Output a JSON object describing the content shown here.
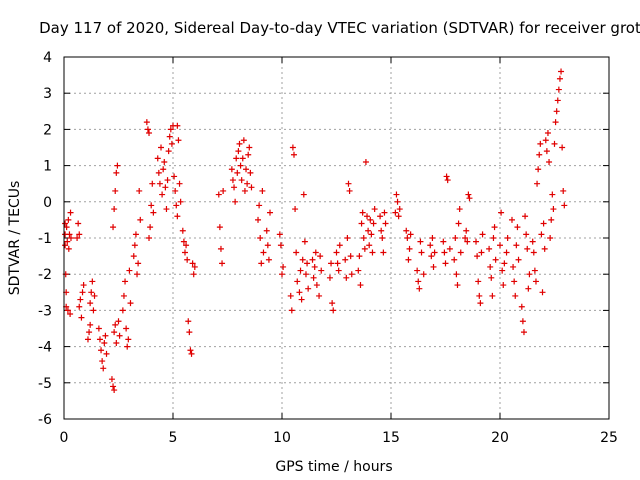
{
  "chart_data": {
    "type": "scatter",
    "title": "Day 117 of 2020, Sidereal Day-to-day VTEC variation (SDTVAR) for receiver grot",
    "xlabel": "GPS time / hours",
    "ylabel": "SDTVAR / TECUs",
    "xlim": [
      0,
      25
    ],
    "ylim": [
      -6,
      4
    ],
    "xticks": [
      0,
      5,
      10,
      15,
      20,
      25
    ],
    "yticks": [
      -6,
      -5,
      -4,
      -3,
      -2,
      -1,
      0,
      1,
      2,
      3,
      4
    ],
    "grid": true,
    "marker": "+",
    "color": "#e00000",
    "series": [
      {
        "name": "SDTVAR",
        "points": [
          [
            0.05,
            -0.6
          ],
          [
            0.05,
            -0.9
          ],
          [
            0.05,
            -1.2
          ],
          [
            0.08,
            -2.0
          ],
          [
            0.1,
            -2.5
          ],
          [
            0.1,
            -2.9
          ],
          [
            0.12,
            -0.7
          ],
          [
            0.15,
            -1.1
          ],
          [
            0.18,
            -3.0
          ],
          [
            0.2,
            -0.5
          ],
          [
            0.22,
            -1.3
          ],
          [
            0.25,
            -0.9
          ],
          [
            0.28,
            -3.1
          ],
          [
            0.3,
            -0.3
          ],
          [
            0.32,
            -1.0
          ],
          [
            0.6,
            -1.0
          ],
          [
            0.65,
            -0.6
          ],
          [
            0.7,
            -0.9
          ],
          [
            0.7,
            -2.9
          ],
          [
            0.75,
            -2.7
          ],
          [
            0.8,
            -3.2
          ],
          [
            0.85,
            -2.5
          ],
          [
            0.9,
            -2.3
          ],
          [
            1.1,
            -3.8
          ],
          [
            1.15,
            -3.6
          ],
          [
            1.2,
            -3.4
          ],
          [
            1.2,
            -2.8
          ],
          [
            1.25,
            -2.5
          ],
          [
            1.3,
            -2.2
          ],
          [
            1.35,
            -3.0
          ],
          [
            1.4,
            -2.6
          ],
          [
            1.6,
            -3.5
          ],
          [
            1.65,
            -3.8
          ],
          [
            1.7,
            -4.1
          ],
          [
            1.75,
            -4.4
          ],
          [
            1.8,
            -4.6
          ],
          [
            1.85,
            -3.9
          ],
          [
            1.9,
            -3.7
          ],
          [
            1.95,
            -4.2
          ],
          [
            2.2,
            -4.9
          ],
          [
            2.25,
            -5.1
          ],
          [
            2.3,
            -5.2
          ],
          [
            2.3,
            -3.6
          ],
          [
            2.35,
            -3.4
          ],
          [
            2.4,
            -3.9
          ],
          [
            2.25,
            -0.7
          ],
          [
            2.3,
            -0.2
          ],
          [
            2.35,
            0.3
          ],
          [
            2.4,
            0.8
          ],
          [
            2.45,
            1.0
          ],
          [
            2.5,
            -3.3
          ],
          [
            2.55,
            -3.7
          ],
          [
            2.7,
            -3.0
          ],
          [
            2.75,
            -2.6
          ],
          [
            2.8,
            -2.2
          ],
          [
            2.85,
            -3.5
          ],
          [
            2.9,
            -4.0
          ],
          [
            2.95,
            -3.8
          ],
          [
            3.0,
            -1.9
          ],
          [
            3.05,
            -2.8
          ],
          [
            3.2,
            -1.5
          ],
          [
            3.25,
            -1.2
          ],
          [
            3.3,
            -0.9
          ],
          [
            3.35,
            -2.0
          ],
          [
            3.4,
            -1.7
          ],
          [
            3.45,
            0.3
          ],
          [
            3.5,
            -0.5
          ],
          [
            3.8,
            2.2
          ],
          [
            3.85,
            2.0
          ],
          [
            3.9,
            1.9
          ],
          [
            3.9,
            -1.0
          ],
          [
            3.95,
            -0.7
          ],
          [
            4.0,
            -0.1
          ],
          [
            4.05,
            0.5
          ],
          [
            4.1,
            -0.3
          ],
          [
            4.3,
            1.2
          ],
          [
            4.35,
            0.8
          ],
          [
            4.4,
            0.5
          ],
          [
            4.45,
            1.5
          ],
          [
            4.5,
            0.2
          ],
          [
            4.55,
            0.9
          ],
          [
            4.6,
            1.1
          ],
          [
            4.65,
            0.4
          ],
          [
            4.7,
            -0.2
          ],
          [
            4.75,
            0.6
          ],
          [
            4.8,
            1.4
          ],
          [
            4.85,
            1.8
          ],
          [
            4.9,
            2.0
          ],
          [
            4.95,
            1.6
          ],
          [
            5.0,
            2.1
          ],
          [
            5.05,
            0.7
          ],
          [
            5.1,
            0.3
          ],
          [
            5.15,
            -0.1
          ],
          [
            5.2,
            -0.4
          ],
          [
            5.2,
            2.1
          ],
          [
            5.25,
            1.7
          ],
          [
            5.3,
            0.5
          ],
          [
            5.35,
            0.0
          ],
          [
            5.45,
            -0.8
          ],
          [
            5.5,
            -1.1
          ],
          [
            5.55,
            -1.4
          ],
          [
            5.6,
            -1.2
          ],
          [
            5.65,
            -1.6
          ],
          [
            5.7,
            -3.3
          ],
          [
            5.75,
            -3.6
          ],
          [
            5.8,
            -4.1
          ],
          [
            5.85,
            -4.2
          ],
          [
            5.9,
            -1.7
          ],
          [
            5.95,
            -2.0
          ],
          [
            6.0,
            -1.8
          ],
          [
            7.1,
            0.2
          ],
          [
            7.15,
            -0.7
          ],
          [
            7.2,
            -1.3
          ],
          [
            7.25,
            -1.7
          ],
          [
            7.3,
            0.3
          ],
          [
            7.7,
            0.9
          ],
          [
            7.75,
            0.6
          ],
          [
            7.8,
            0.4
          ],
          [
            7.85,
            0.0
          ],
          [
            7.9,
            1.2
          ],
          [
            7.95,
            0.8
          ],
          [
            8.0,
            1.4
          ],
          [
            8.05,
            1.6
          ],
          [
            8.1,
            1.0
          ],
          [
            8.15,
            0.6
          ],
          [
            8.2,
            1.2
          ],
          [
            8.25,
            1.7
          ],
          [
            8.3,
            0.3
          ],
          [
            8.35,
            0.9
          ],
          [
            8.4,
            0.5
          ],
          [
            8.45,
            1.3
          ],
          [
            8.5,
            1.5
          ],
          [
            8.55,
            0.8
          ],
          [
            8.6,
            0.4
          ],
          [
            8.9,
            -0.5
          ],
          [
            8.95,
            -0.1
          ],
          [
            9.0,
            -1.0
          ],
          [
            9.05,
            -1.7
          ],
          [
            9.1,
            0.3
          ],
          [
            9.15,
            -1.4
          ],
          [
            9.3,
            -0.8
          ],
          [
            9.35,
            -1.2
          ],
          [
            9.4,
            -1.6
          ],
          [
            9.45,
            -0.3
          ],
          [
            9.9,
            -0.9
          ],
          [
            9.95,
            -1.2
          ],
          [
            10.0,
            -2.0
          ],
          [
            10.05,
            -1.8
          ],
          [
            10.4,
            -2.6
          ],
          [
            10.45,
            -3.0
          ],
          [
            10.5,
            1.5
          ],
          [
            10.55,
            1.3
          ],
          [
            10.6,
            -0.2
          ],
          [
            10.65,
            -1.4
          ],
          [
            10.7,
            -2.2
          ],
          [
            10.8,
            -2.5
          ],
          [
            10.85,
            -1.9
          ],
          [
            10.9,
            -2.7
          ],
          [
            10.95,
            -1.6
          ],
          [
            11.0,
            0.2
          ],
          [
            11.05,
            -1.1
          ],
          [
            11.1,
            -2.0
          ],
          [
            11.15,
            -1.7
          ],
          [
            11.2,
            -2.4
          ],
          [
            11.4,
            -1.6
          ],
          [
            11.45,
            -2.1
          ],
          [
            11.5,
            -1.8
          ],
          [
            11.55,
            -1.4
          ],
          [
            11.6,
            -2.3
          ],
          [
            11.7,
            -2.6
          ],
          [
            11.75,
            -1.5
          ],
          [
            11.8,
            -1.9
          ],
          [
            12.2,
            -2.1
          ],
          [
            12.25,
            -1.7
          ],
          [
            12.3,
            -2.8
          ],
          [
            12.35,
            -3.0
          ],
          [
            12.5,
            -1.4
          ],
          [
            12.55,
            -1.7
          ],
          [
            12.6,
            -1.9
          ],
          [
            12.65,
            -1.2
          ],
          [
            12.9,
            -1.6
          ],
          [
            12.95,
            -2.1
          ],
          [
            13.0,
            -1.0
          ],
          [
            13.05,
            0.5
          ],
          [
            13.1,
            0.3
          ],
          [
            13.15,
            -1.5
          ],
          [
            13.2,
            -2.0
          ],
          [
            13.5,
            -1.9
          ],
          [
            13.55,
            -1.5
          ],
          [
            13.6,
            -2.3
          ],
          [
            13.65,
            -0.6
          ],
          [
            13.7,
            -0.3
          ],
          [
            13.75,
            -1.0
          ],
          [
            13.8,
            -1.3
          ],
          [
            13.85,
            1.1
          ],
          [
            13.9,
            -0.4
          ],
          [
            13.95,
            -0.8
          ],
          [
            14.0,
            -1.2
          ],
          [
            14.05,
            -0.5
          ],
          [
            14.1,
            -0.9
          ],
          [
            14.15,
            -1.4
          ],
          [
            14.2,
            -0.6
          ],
          [
            14.25,
            -0.2
          ],
          [
            14.5,
            -0.4
          ],
          [
            14.55,
            -0.8
          ],
          [
            14.6,
            -1.0
          ],
          [
            14.65,
            -1.4
          ],
          [
            14.7,
            -0.3
          ],
          [
            14.75,
            -0.6
          ],
          [
            15.2,
            -0.3
          ],
          [
            15.25,
            0.2
          ],
          [
            15.3,
            0.0
          ],
          [
            15.35,
            -0.4
          ],
          [
            15.4,
            -0.2
          ],
          [
            15.7,
            -0.8
          ],
          [
            15.75,
            -1.0
          ],
          [
            15.8,
            -1.6
          ],
          [
            15.85,
            -1.3
          ],
          [
            15.9,
            -0.9
          ],
          [
            16.2,
            -1.9
          ],
          [
            16.25,
            -2.2
          ],
          [
            16.3,
            -2.4
          ],
          [
            16.35,
            -1.1
          ],
          [
            16.4,
            -1.4
          ],
          [
            16.5,
            -2.0
          ],
          [
            16.8,
            -1.2
          ],
          [
            16.85,
            -1.5
          ],
          [
            16.9,
            -1.0
          ],
          [
            16.95,
            -1.8
          ],
          [
            17.0,
            -1.4
          ],
          [
            17.4,
            -1.1
          ],
          [
            17.45,
            -1.4
          ],
          [
            17.5,
            -1.7
          ],
          [
            17.55,
            0.7
          ],
          [
            17.6,
            0.6
          ],
          [
            17.7,
            -1.3
          ],
          [
            17.9,
            -1.6
          ],
          [
            17.95,
            -1.0
          ],
          [
            18.0,
            -2.0
          ],
          [
            18.05,
            -2.3
          ],
          [
            18.1,
            -0.6
          ],
          [
            18.15,
            -0.2
          ],
          [
            18.2,
            -1.4
          ],
          [
            18.4,
            -1.0
          ],
          [
            18.45,
            -0.8
          ],
          [
            18.5,
            -1.1
          ],
          [
            18.55,
            0.2
          ],
          [
            18.6,
            0.1
          ],
          [
            18.9,
            -1.1
          ],
          [
            18.95,
            -1.5
          ],
          [
            19.0,
            -2.2
          ],
          [
            19.05,
            -2.6
          ],
          [
            19.1,
            -2.8
          ],
          [
            19.15,
            -1.4
          ],
          [
            19.2,
            -0.9
          ],
          [
            19.5,
            -1.3
          ],
          [
            19.55,
            -1.8
          ],
          [
            19.6,
            -2.1
          ],
          [
            19.65,
            -2.6
          ],
          [
            19.7,
            -1.0
          ],
          [
            19.75,
            -0.7
          ],
          [
            19.8,
            -1.6
          ],
          [
            20.0,
            -1.2
          ],
          [
            20.05,
            -0.3
          ],
          [
            20.1,
            -1.9
          ],
          [
            20.15,
            -2.3
          ],
          [
            20.2,
            -1.7
          ],
          [
            20.3,
            -1.4
          ],
          [
            20.35,
            -1.0
          ],
          [
            20.55,
            -0.5
          ],
          [
            20.6,
            -1.8
          ],
          [
            20.65,
            -2.2
          ],
          [
            20.7,
            -2.6
          ],
          [
            20.75,
            -1.2
          ],
          [
            20.8,
            -0.7
          ],
          [
            20.85,
            -1.6
          ],
          [
            21.0,
            -2.9
          ],
          [
            21.05,
            -3.3
          ],
          [
            21.1,
            -3.6
          ],
          [
            21.15,
            -0.4
          ],
          [
            21.2,
            -0.9
          ],
          [
            21.25,
            -1.3
          ],
          [
            21.3,
            -2.4
          ],
          [
            21.35,
            -2.0
          ],
          [
            21.5,
            -1.1
          ],
          [
            21.55,
            -1.4
          ],
          [
            21.6,
            -1.9
          ],
          [
            21.65,
            -2.2
          ],
          [
            21.7,
            0.5
          ],
          [
            21.75,
            0.9
          ],
          [
            21.8,
            1.3
          ],
          [
            21.85,
            1.6
          ],
          [
            21.9,
            -0.9
          ],
          [
            21.95,
            -2.5
          ],
          [
            22.0,
            -0.6
          ],
          [
            22.05,
            -1.3
          ],
          [
            22.1,
            1.7
          ],
          [
            22.15,
            1.4
          ],
          [
            22.2,
            1.9
          ],
          [
            22.25,
            1.1
          ],
          [
            22.3,
            -1.0
          ],
          [
            22.35,
            -0.5
          ],
          [
            22.4,
            0.2
          ],
          [
            22.45,
            -0.2
          ],
          [
            22.5,
            1.6
          ],
          [
            22.55,
            2.2
          ],
          [
            22.6,
            2.5
          ],
          [
            22.65,
            2.8
          ],
          [
            22.7,
            3.1
          ],
          [
            22.75,
            3.4
          ],
          [
            22.8,
            3.6
          ],
          [
            22.85,
            1.5
          ],
          [
            22.9,
            0.3
          ],
          [
            22.95,
            -0.1
          ]
        ]
      }
    ]
  }
}
